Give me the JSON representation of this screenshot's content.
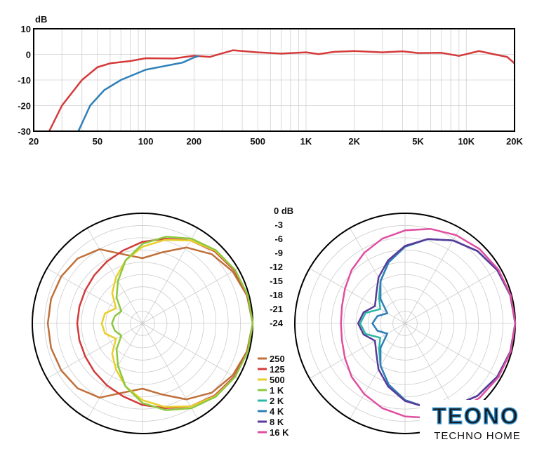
{
  "chart_data": [
    {
      "type": "line",
      "title": "",
      "ylabel": "dB",
      "xlabel": "",
      "xscale": "log",
      "xlim": [
        20,
        20000
      ],
      "ylim": [
        -30,
        10
      ],
      "xticks": [
        {
          "v": 20,
          "l": "20"
        },
        {
          "v": 50,
          "l": "50"
        },
        {
          "v": 100,
          "l": "100"
        },
        {
          "v": 200,
          "l": "200"
        },
        {
          "v": 500,
          "l": "500"
        },
        {
          "v": 1000,
          "l": "1K"
        },
        {
          "v": 2000,
          "l": "2K"
        },
        {
          "v": 5000,
          "l": "5K"
        },
        {
          "v": 10000,
          "l": "10K"
        },
        {
          "v": 20000,
          "l": "20K"
        }
      ],
      "yticks": [
        10,
        0,
        -10,
        -20,
        -30
      ],
      "series": [
        {
          "name": "red",
          "color": "#d43a3a",
          "x": [
            25,
            30,
            40,
            50,
            60,
            80,
            100,
            150,
            200,
            250,
            350,
            500,
            700,
            1000,
            1200,
            1500,
            2000,
            3000,
            4000,
            5000,
            7000,
            9000,
            12000,
            15000,
            18000,
            20000
          ],
          "y": [
            -30,
            -20,
            -10,
            -5,
            -3.5,
            -2.6,
            -1.5,
            -1.6,
            -0.5,
            -1,
            1.6,
            0.8,
            0.3,
            0.8,
            0.1,
            1,
            1.3,
            0.8,
            1.2,
            0.5,
            0.6,
            -0.6,
            1.3,
            0,
            -1,
            -3.5
          ]
        },
        {
          "name": "blue",
          "color": "#2f7fb8",
          "x": [
            38,
            45,
            55,
            70,
            100,
            130,
            170,
            200,
            215
          ],
          "y": [
            -30,
            -20,
            -14,
            -10,
            -6,
            -4.6,
            -3.2,
            -1.2,
            -0.6
          ]
        }
      ]
    },
    {
      "type": "polar",
      "scale_labels": [
        "0 dB",
        "-3",
        "-6",
        "-9",
        "-12",
        "-15",
        "-18",
        "-21",
        "-24"
      ],
      "range_db": [
        -27,
        0
      ],
      "angles": [
        0,
        15,
        30,
        45,
        60,
        75,
        90,
        105,
        120,
        135,
        150,
        165,
        180
      ],
      "left": [
        {
          "name": "250",
          "color": "#c0703a",
          "db": [
            0,
            -0.5,
            -1.5,
            -3,
            -5.5,
            -9,
            -11,
            -9.5,
            -6,
            -4.5,
            -4,
            -3.8,
            -3.8
          ]
        },
        {
          "name": "125",
          "color": "#d43a3a",
          "db": [
            0,
            -0.4,
            -1,
            -2,
            -3.5,
            -5.5,
            -7,
            -8.5,
            -9.5,
            -10.3,
            -10.8,
            -11,
            -11
          ]
        },
        {
          "name": "500",
          "color": "#e8cf2a",
          "db": [
            0,
            -0.3,
            -0.8,
            -1.8,
            -3.5,
            -5.8,
            -8.2,
            -11,
            -14,
            -16.5,
            -19.5,
            -17.5,
            -17
          ]
        },
        {
          "name": "1 K",
          "color": "#8cc840",
          "db": [
            0,
            -0.3,
            -0.8,
            -1.6,
            -3,
            -5,
            -7.5,
            -11,
            -15,
            -18,
            -21,
            -20,
            -19.5
          ]
        }
      ],
      "right": [
        {
          "name": "2 K",
          "color": "#2bb8a6",
          "db": [
            0,
            -0.3,
            -0.9,
            -1.9,
            -3.5,
            -5.6,
            -8.2,
            -11.5,
            -15,
            -18,
            -20,
            -17,
            -16
          ]
        },
        {
          "name": "4 K",
          "color": "#2f7fb8",
          "db": [
            0,
            -0.3,
            -0.9,
            -1.9,
            -3.5,
            -5.6,
            -8.2,
            -11.5,
            -15,
            -18.5,
            -22,
            -20,
            -19
          ]
        },
        {
          "name": "8 K",
          "color": "#5a3a9a",
          "db": [
            0,
            -0.3,
            -0.9,
            -1.9,
            -3.5,
            -5.6,
            -8,
            -11,
            -14,
            -17,
            -18.5,
            -16.5,
            -15.5
          ]
        },
        {
          "name": "16 K",
          "color": "#e04fa0",
          "db": [
            0,
            -0.2,
            -0.6,
            -1.2,
            -2,
            -3,
            -4.2,
            -5.5,
            -7,
            -8.5,
            -10,
            -11,
            -11.3
          ]
        }
      ],
      "legend": [
        "250",
        "125",
        "500",
        "1 K",
        "2 K",
        "4 K",
        "8 K",
        "16 K"
      ]
    }
  ],
  "logo": {
    "name": "TEONO",
    "tagline": "TECHNO HOME"
  }
}
